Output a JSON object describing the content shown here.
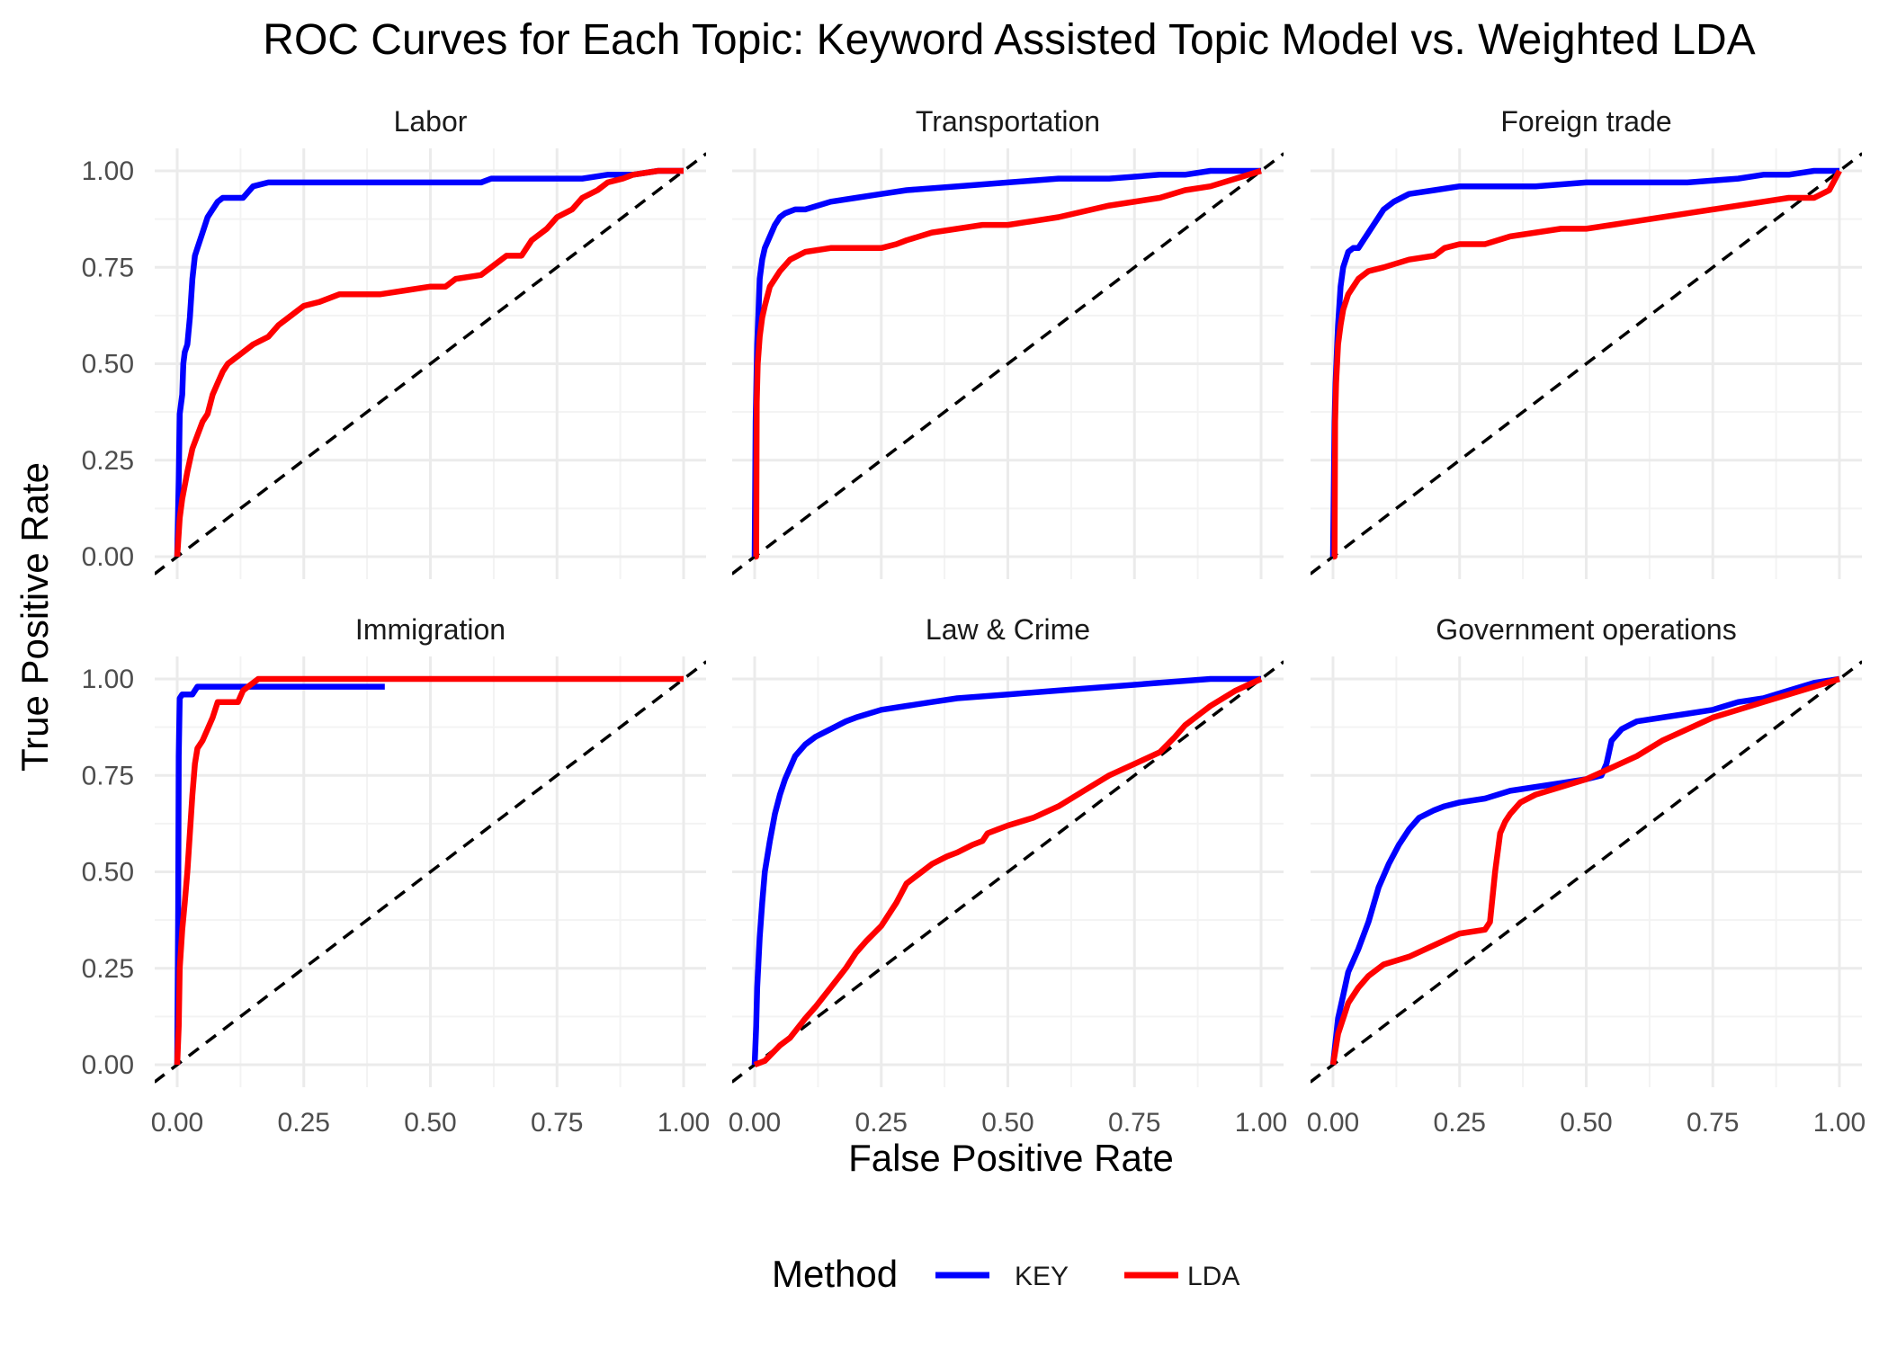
{
  "chart_data": {
    "type": "line",
    "title": "ROC Curves for Each Topic: Keyword Assisted Topic Model vs. Weighted LDA",
    "xlabel": "False Positive Rate",
    "ylabel": "True Positive Rate",
    "xlim": [
      0,
      1
    ],
    "ylim": [
      0,
      1
    ],
    "xticks": [
      "0.00",
      "0.25",
      "0.50",
      "0.75",
      "1.00"
    ],
    "yticks": [
      "0.00",
      "0.25",
      "0.50",
      "0.75",
      "1.00"
    ],
    "grid": true,
    "reference_line": "diagonal-dashed",
    "legend": {
      "title": "Method",
      "position": "bottom",
      "entries": [
        {
          "label": "KEY",
          "color": "#0000ff"
        },
        {
          "label": "LDA",
          "color": "#ff0000"
        }
      ]
    },
    "panels": [
      {
        "topic": "Labor",
        "series": [
          {
            "name": "KEY",
            "color": "#0000ff",
            "x": [
              0,
              0.003,
              0.005,
              0.01,
              0.012,
              0.015,
              0.02,
              0.025,
              0.03,
              0.035,
              0.04,
              0.05,
              0.06,
              0.07,
              0.08,
              0.09,
              0.1,
              0.13,
              0.15,
              0.18,
              0.2,
              0.3,
              0.5,
              0.6,
              0.62,
              0.8,
              0.85,
              0.9,
              0.95,
              1
            ],
            "y": [
              0,
              0.2,
              0.37,
              0.42,
              0.5,
              0.53,
              0.55,
              0.62,
              0.72,
              0.78,
              0.8,
              0.84,
              0.88,
              0.9,
              0.92,
              0.93,
              0.93,
              0.93,
              0.96,
              0.97,
              0.97,
              0.97,
              0.97,
              0.97,
              0.98,
              0.98,
              0.99,
              0.99,
              1,
              1
            ]
          },
          {
            "name": "LDA",
            "color": "#ff0000",
            "x": [
              0,
              0.005,
              0.01,
              0.02,
              0.03,
              0.05,
              0.06,
              0.07,
              0.08,
              0.09,
              0.1,
              0.12,
              0.15,
              0.18,
              0.2,
              0.22,
              0.25,
              0.28,
              0.32,
              0.4,
              0.45,
              0.5,
              0.53,
              0.55,
              0.6,
              0.63,
              0.65,
              0.68,
              0.7,
              0.73,
              0.75,
              0.78,
              0.8,
              0.83,
              0.85,
              0.88,
              0.9,
              0.95,
              1
            ],
            "y": [
              0,
              0.1,
              0.15,
              0.22,
              0.28,
              0.35,
              0.37,
              0.42,
              0.45,
              0.48,
              0.5,
              0.52,
              0.55,
              0.57,
              0.6,
              0.62,
              0.65,
              0.66,
              0.68,
              0.68,
              0.69,
              0.7,
              0.7,
              0.72,
              0.73,
              0.76,
              0.78,
              0.78,
              0.82,
              0.85,
              0.88,
              0.9,
              0.93,
              0.95,
              0.97,
              0.98,
              0.99,
              1,
              1
            ]
          }
        ]
      },
      {
        "topic": "Transportation",
        "series": [
          {
            "name": "KEY",
            "color": "#0000ff",
            "x": [
              0,
              0.002,
              0.005,
              0.008,
              0.01,
              0.015,
              0.02,
              0.03,
              0.04,
              0.05,
              0.06,
              0.08,
              0.1,
              0.15,
              0.2,
              0.25,
              0.3,
              0.4,
              0.5,
              0.6,
              0.7,
              0.8,
              0.85,
              0.9,
              1
            ],
            "y": [
              0,
              0.35,
              0.55,
              0.65,
              0.72,
              0.77,
              0.8,
              0.83,
              0.86,
              0.88,
              0.89,
              0.9,
              0.9,
              0.92,
              0.93,
              0.94,
              0.95,
              0.96,
              0.97,
              0.98,
              0.98,
              0.99,
              0.99,
              1,
              1
            ]
          },
          {
            "name": "LDA",
            "color": "#ff0000",
            "x": [
              0,
              0.003,
              0.004,
              0.006,
              0.01,
              0.015,
              0.02,
              0.03,
              0.05,
              0.07,
              0.1,
              0.15,
              0.2,
              0.25,
              0.28,
              0.3,
              0.35,
              0.4,
              0.45,
              0.5,
              0.55,
              0.6,
              0.7,
              0.8,
              0.85,
              0.9,
              0.95,
              1
            ],
            "y": [
              0,
              0.0,
              0.4,
              0.5,
              0.57,
              0.62,
              0.65,
              0.7,
              0.74,
              0.77,
              0.79,
              0.8,
              0.8,
              0.8,
              0.81,
              0.82,
              0.84,
              0.85,
              0.86,
              0.86,
              0.87,
              0.88,
              0.91,
              0.93,
              0.95,
              0.96,
              0.98,
              1
            ]
          }
        ]
      },
      {
        "topic": "Foreign trade",
        "series": [
          {
            "name": "KEY",
            "color": "#0000ff",
            "x": [
              0,
              0.003,
              0.005,
              0.01,
              0.015,
              0.02,
              0.03,
              0.04,
              0.05,
              0.06,
              0.08,
              0.1,
              0.12,
              0.15,
              0.2,
              0.25,
              0.3,
              0.4,
              0.5,
              0.6,
              0.7,
              0.8,
              0.85,
              0.9,
              0.95,
              1
            ],
            "y": [
              0,
              0.35,
              0.45,
              0.6,
              0.7,
              0.75,
              0.79,
              0.8,
              0.8,
              0.82,
              0.86,
              0.9,
              0.92,
              0.94,
              0.95,
              0.96,
              0.96,
              0.96,
              0.97,
              0.97,
              0.97,
              0.98,
              0.99,
              0.99,
              1,
              1
            ]
          },
          {
            "name": "LDA",
            "color": "#ff0000",
            "x": [
              0,
              0.003,
              0.004,
              0.006,
              0.01,
              0.015,
              0.02,
              0.03,
              0.05,
              0.07,
              0.1,
              0.15,
              0.2,
              0.22,
              0.25,
              0.3,
              0.35,
              0.4,
              0.45,
              0.5,
              0.55,
              0.6,
              0.65,
              0.7,
              0.75,
              0.8,
              0.85,
              0.9,
              0.95,
              0.98,
              1
            ],
            "y": [
              0,
              0.0,
              0.35,
              0.45,
              0.55,
              0.6,
              0.64,
              0.68,
              0.72,
              0.74,
              0.75,
              0.77,
              0.78,
              0.8,
              0.81,
              0.81,
              0.83,
              0.84,
              0.85,
              0.85,
              0.86,
              0.87,
              0.88,
              0.89,
              0.9,
              0.91,
              0.92,
              0.93,
              0.93,
              0.95,
              1
            ]
          }
        ]
      },
      {
        "topic": "Immigration",
        "series": [
          {
            "name": "KEY",
            "color": "#0000ff",
            "x": [
              0,
              0.002,
              0.003,
              0.005,
              0.01,
              0.02,
              0.03,
              0.04,
              0.05,
              0.1,
              0.2,
              0.3,
              0.41
            ],
            "y": [
              0,
              0.4,
              0.8,
              0.95,
              0.96,
              0.96,
              0.96,
              0.98,
              0.98,
              0.98,
              0.98,
              0.98,
              0.98
            ]
          },
          {
            "name": "LDA",
            "color": "#ff0000",
            "x": [
              0,
              0.003,
              0.005,
              0.01,
              0.015,
              0.02,
              0.025,
              0.03,
              0.035,
              0.04,
              0.05,
              0.06,
              0.07,
              0.08,
              0.1,
              0.12,
              0.13,
              0.15,
              0.16,
              0.2,
              0.3,
              0.5,
              0.75,
              1
            ],
            "y": [
              0,
              0.1,
              0.25,
              0.35,
              0.42,
              0.5,
              0.6,
              0.7,
              0.78,
              0.82,
              0.84,
              0.87,
              0.9,
              0.94,
              0.94,
              0.94,
              0.97,
              0.99,
              1,
              1,
              1,
              1,
              1,
              1
            ]
          }
        ]
      },
      {
        "topic": "Law & Crime",
        "series": [
          {
            "name": "KEY",
            "color": "#0000ff",
            "x": [
              0,
              0.003,
              0.005,
              0.01,
              0.015,
              0.02,
              0.03,
              0.04,
              0.05,
              0.06,
              0.08,
              0.1,
              0.12,
              0.15,
              0.18,
              0.2,
              0.25,
              0.3,
              0.35,
              0.4,
              0.5,
              0.6,
              0.7,
              0.8,
              0.9,
              0.95,
              1
            ],
            "y": [
              0,
              0.1,
              0.2,
              0.33,
              0.42,
              0.5,
              0.58,
              0.65,
              0.7,
              0.74,
              0.8,
              0.83,
              0.85,
              0.87,
              0.89,
              0.9,
              0.92,
              0.93,
              0.94,
              0.95,
              0.96,
              0.97,
              0.98,
              0.99,
              1,
              1,
              1
            ]
          },
          {
            "name": "LDA",
            "color": "#ff0000",
            "x": [
              0,
              0.02,
              0.05,
              0.07,
              0.1,
              0.12,
              0.15,
              0.18,
              0.2,
              0.22,
              0.25,
              0.28,
              0.3,
              0.33,
              0.35,
              0.38,
              0.4,
              0.43,
              0.45,
              0.46,
              0.48,
              0.5,
              0.55,
              0.6,
              0.65,
              0.7,
              0.75,
              0.8,
              0.83,
              0.85,
              0.88,
              0.9,
              0.95,
              1
            ],
            "y": [
              0,
              0.01,
              0.05,
              0.07,
              0.12,
              0.15,
              0.2,
              0.25,
              0.29,
              0.32,
              0.36,
              0.42,
              0.47,
              0.5,
              0.52,
              0.54,
              0.55,
              0.57,
              0.58,
              0.6,
              0.61,
              0.62,
              0.64,
              0.67,
              0.71,
              0.75,
              0.78,
              0.81,
              0.85,
              0.88,
              0.91,
              0.93,
              0.97,
              1
            ]
          }
        ]
      },
      {
        "topic": "Government operations",
        "series": [
          {
            "name": "KEY",
            "color": "#0000ff",
            "x": [
              0,
              0.01,
              0.02,
              0.03,
              0.05,
              0.07,
              0.09,
              0.11,
              0.13,
              0.15,
              0.17,
              0.2,
              0.22,
              0.25,
              0.3,
              0.35,
              0.4,
              0.45,
              0.5,
              0.53,
              0.54,
              0.55,
              0.57,
              0.6,
              0.65,
              0.7,
              0.75,
              0.8,
              0.85,
              0.9,
              0.95,
              1
            ],
            "y": [
              0,
              0.12,
              0.18,
              0.24,
              0.3,
              0.37,
              0.46,
              0.52,
              0.57,
              0.61,
              0.64,
              0.66,
              0.67,
              0.68,
              0.69,
              0.71,
              0.72,
              0.73,
              0.74,
              0.75,
              0.78,
              0.84,
              0.87,
              0.89,
              0.9,
              0.91,
              0.92,
              0.94,
              0.95,
              0.97,
              0.99,
              1
            ]
          },
          {
            "name": "LDA",
            "color": "#ff0000",
            "x": [
              0,
              0.01,
              0.02,
              0.03,
              0.05,
              0.07,
              0.1,
              0.15,
              0.2,
              0.25,
              0.3,
              0.31,
              0.32,
              0.33,
              0.34,
              0.35,
              0.37,
              0.4,
              0.45,
              0.5,
              0.55,
              0.6,
              0.65,
              0.7,
              0.75,
              0.8,
              0.85,
              0.9,
              0.95,
              1
            ],
            "y": [
              0,
              0.08,
              0.12,
              0.16,
              0.2,
              0.23,
              0.26,
              0.28,
              0.31,
              0.34,
              0.35,
              0.37,
              0.5,
              0.6,
              0.63,
              0.65,
              0.68,
              0.7,
              0.72,
              0.74,
              0.77,
              0.8,
              0.84,
              0.87,
              0.9,
              0.92,
              0.94,
              0.96,
              0.98,
              1
            ]
          }
        ]
      }
    ]
  }
}
